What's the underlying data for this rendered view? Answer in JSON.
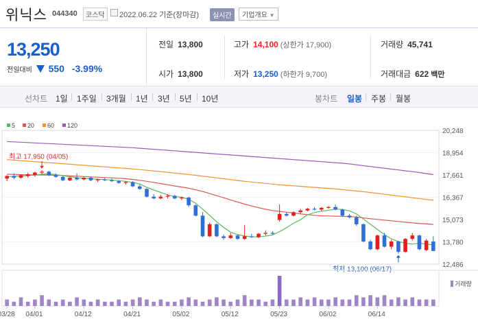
{
  "header": {
    "name": "위닉스",
    "code": "044340",
    "market": "코스닥",
    "date": "2022.06.22 기준(장마감)",
    "realtime_label": "실시간",
    "company_button": "기업개요"
  },
  "quote": {
    "price": "13,250",
    "change_label": "전일대비",
    "change_value": "550",
    "change_percent": "-3.99%",
    "prev_close_label": "전일",
    "prev_close": "13,800",
    "open_label": "시가",
    "open": "13,800",
    "high_label": "고가",
    "high": "14,100",
    "upper_limit": "(상한가 17,900)",
    "low_label": "저가",
    "low": "13,250",
    "lower_limit": "(하한가 9,700)",
    "volume_label": "거래량",
    "volume": "45,741",
    "amount_label": "거래대금",
    "amount": "622",
    "amount_unit": "백만"
  },
  "period_bar": {
    "line_chart_label": "선차트",
    "line_periods": [
      "1일",
      "1주일",
      "3개월",
      "1년",
      "3년",
      "5년",
      "10년"
    ],
    "candle_chart_label": "봉차트",
    "candle_periods": [
      "일봉",
      "주봉",
      "월봉"
    ],
    "active_candle": "일봉"
  },
  "colors": {
    "up": "#e02020",
    "down": "#2f6fd6",
    "ma5": "#5cb85c",
    "ma20": "#e05555",
    "ma60": "#f0932b",
    "ma120": "#9b59b6",
    "volume": "#9e86c9",
    "volume_spike": "#8a6bc0"
  },
  "chart_data": {
    "type": "candlestick",
    "legend": [
      {
        "name": "5",
        "color": "#5cb85c"
      },
      {
        "name": "20",
        "color": "#e05555"
      },
      {
        "name": "60",
        "color": "#f0932b"
      },
      {
        "name": "120",
        "color": "#9b59b6"
      }
    ],
    "y_ticks": [
      20248,
      18954,
      17661,
      16367,
      15073,
      13780,
      12486
    ],
    "y_tick_labels": [
      "20,248",
      "18,954",
      "17,661",
      "16,367",
      "15,073",
      "13,780",
      "12,486"
    ],
    "ylim": [
      12486,
      20248
    ],
    "x_tick_labels": [
      "03/28",
      "04/01",
      "04/12",
      "04/21",
      "05/02",
      "05/12",
      "05/23",
      "06/02",
      "06/14"
    ],
    "x_tick_index": [
      0,
      4,
      11,
      18,
      25,
      32,
      39,
      46,
      53
    ],
    "volume_label": "거래량",
    "annotations": {
      "high": {
        "text": "최고 17,950 (04/05)",
        "index": 5,
        "price": 17950
      },
      "low": {
        "text": "최저 13,100 (06/17)",
        "index": 56,
        "price": 13100
      }
    },
    "candles": [
      {
        "o": 17450,
        "h": 17650,
        "l": 17300,
        "c": 17600
      },
      {
        "o": 17600,
        "h": 17750,
        "l": 17400,
        "c": 17500
      },
      {
        "o": 17500,
        "h": 17700,
        "l": 17450,
        "c": 17650
      },
      {
        "o": 17600,
        "h": 17800,
        "l": 17500,
        "c": 17700
      },
      {
        "o": 17650,
        "h": 17850,
        "l": 17550,
        "c": 17800
      },
      {
        "o": 17800,
        "h": 17950,
        "l": 17700,
        "c": 17850
      },
      {
        "o": 17850,
        "h": 17900,
        "l": 17600,
        "c": 17650
      },
      {
        "o": 17650,
        "h": 17750,
        "l": 17500,
        "c": 17550
      },
      {
        "o": 17550,
        "h": 17600,
        "l": 17300,
        "c": 17350
      },
      {
        "o": 17350,
        "h": 17550,
        "l": 17300,
        "c": 17500
      },
      {
        "o": 17500,
        "h": 17750,
        "l": 17350,
        "c": 17400
      },
      {
        "o": 17400,
        "h": 17550,
        "l": 17350,
        "c": 17500
      },
      {
        "o": 17500,
        "h": 17550,
        "l": 17300,
        "c": 17350
      },
      {
        "o": 17350,
        "h": 17450,
        "l": 17250,
        "c": 17400
      },
      {
        "o": 17400,
        "h": 17500,
        "l": 17300,
        "c": 17350
      },
      {
        "o": 17350,
        "h": 17450,
        "l": 17250,
        "c": 17300
      },
      {
        "o": 17300,
        "h": 17350,
        "l": 17150,
        "c": 17200
      },
      {
        "o": 17200,
        "h": 17300,
        "l": 17100,
        "c": 17250
      },
      {
        "o": 17250,
        "h": 17300,
        "l": 16950,
        "c": 17000
      },
      {
        "o": 17000,
        "h": 17100,
        "l": 16800,
        "c": 16850
      },
      {
        "o": 16850,
        "h": 16900,
        "l": 16350,
        "c": 16400
      },
      {
        "o": 16400,
        "h": 16550,
        "l": 16250,
        "c": 16300
      },
      {
        "o": 16300,
        "h": 16500,
        "l": 16250,
        "c": 16400
      },
      {
        "o": 16400,
        "h": 16550,
        "l": 16300,
        "c": 16450
      },
      {
        "o": 16450,
        "h": 16500,
        "l": 16250,
        "c": 16300
      },
      {
        "o": 16300,
        "h": 16400,
        "l": 16200,
        "c": 16350
      },
      {
        "o": 16350,
        "h": 16400,
        "l": 15800,
        "c": 15900
      },
      {
        "o": 15900,
        "h": 15950,
        "l": 15250,
        "c": 15300
      },
      {
        "o": 15300,
        "h": 15500,
        "l": 14050,
        "c": 14100
      },
      {
        "o": 14100,
        "h": 14900,
        "l": 14050,
        "c": 14800
      },
      {
        "o": 14800,
        "h": 14850,
        "l": 14050,
        "c": 14100
      },
      {
        "o": 14100,
        "h": 14200,
        "l": 13900,
        "c": 14000
      },
      {
        "o": 14000,
        "h": 14300,
        "l": 13950,
        "c": 14150
      },
      {
        "o": 14150,
        "h": 14200,
        "l": 13900,
        "c": 13950
      },
      {
        "o": 13950,
        "h": 14750,
        "l": 13900,
        "c": 14100
      },
      {
        "o": 14100,
        "h": 14250,
        "l": 14000,
        "c": 14050
      },
      {
        "o": 14050,
        "h": 14300,
        "l": 14000,
        "c": 14250
      },
      {
        "o": 14250,
        "h": 14450,
        "l": 14150,
        "c": 14300
      },
      {
        "o": 14300,
        "h": 14400,
        "l": 14200,
        "c": 14250
      },
      {
        "o": 15050,
        "h": 15950,
        "l": 14950,
        "c": 15400
      },
      {
        "o": 15400,
        "h": 15500,
        "l": 15250,
        "c": 15300
      },
      {
        "o": 15300,
        "h": 15550,
        "l": 15250,
        "c": 15500
      },
      {
        "o": 15500,
        "h": 15700,
        "l": 15400,
        "c": 15600
      },
      {
        "o": 15600,
        "h": 15750,
        "l": 15550,
        "c": 15700
      },
      {
        "o": 15700,
        "h": 15800,
        "l": 15600,
        "c": 15650
      },
      {
        "o": 15650,
        "h": 15800,
        "l": 15550,
        "c": 15750
      },
      {
        "o": 15750,
        "h": 15850,
        "l": 15700,
        "c": 15800
      },
      {
        "o": 15800,
        "h": 15950,
        "l": 15600,
        "c": 15650
      },
      {
        "o": 15650,
        "h": 15700,
        "l": 15250,
        "c": 15300
      },
      {
        "o": 15300,
        "h": 15400,
        "l": 15150,
        "c": 15200
      },
      {
        "o": 15200,
        "h": 15300,
        "l": 14700,
        "c": 14800
      },
      {
        "o": 14800,
        "h": 14850,
        "l": 13750,
        "c": 13800
      },
      {
        "o": 13800,
        "h": 13900,
        "l": 13300,
        "c": 13350
      },
      {
        "o": 13350,
        "h": 14200,
        "l": 13300,
        "c": 14150
      },
      {
        "o": 14150,
        "h": 14300,
        "l": 13450,
        "c": 13500
      },
      {
        "o": 13500,
        "h": 13900,
        "l": 13350,
        "c": 13800
      },
      {
        "o": 13800,
        "h": 13850,
        "l": 13100,
        "c": 13200
      },
      {
        "o": 13200,
        "h": 14000,
        "l": 13150,
        "c": 13950
      },
      {
        "o": 13950,
        "h": 14300,
        "l": 13850,
        "c": 14150
      },
      {
        "o": 14150,
        "h": 14200,
        "l": 13300,
        "c": 13350
      },
      {
        "o": 13300,
        "h": 13950,
        "l": 13250,
        "c": 13850
      },
      {
        "o": 13800,
        "h": 14100,
        "l": 13250,
        "c": 13250
      }
    ],
    "ma5": [
      17550,
      17580,
      17600,
      17620,
      17660,
      17700,
      17720,
      17680,
      17620,
      17560,
      17500,
      17460,
      17440,
      17410,
      17390,
      17370,
      17330,
      17290,
      17230,
      17130,
      16950,
      16790,
      16650,
      16500,
      16400,
      16370,
      16250,
      16020,
      15680,
      15320,
      14940,
      14620,
      14340,
      14200,
      14120,
      14070,
      14070,
      14110,
      14180,
      14370,
      14600,
      14860,
      15060,
      15350,
      15480,
      15560,
      15620,
      15680,
      15660,
      15580,
      15400,
      15100,
      14800,
      14500,
      14200,
      13950,
      13800,
      13700,
      13650,
      13700,
      13650,
      13600
    ],
    "ma20": [
      17700,
      17690,
      17680,
      17670,
      17660,
      17660,
      17650,
      17640,
      17630,
      17610,
      17590,
      17570,
      17550,
      17530,
      17510,
      17490,
      17470,
      17440,
      17400,
      17350,
      17290,
      17230,
      17160,
      17090,
      17020,
      16960,
      16890,
      16800,
      16700,
      16580,
      16460,
      16340,
      16210,
      16090,
      15970,
      15860,
      15760,
      15670,
      15600,
      15550,
      15500,
      15450,
      15400,
      15360,
      15320,
      15290,
      15280,
      15270,
      15260,
      15250,
      15220,
      15170,
      15120,
      15080,
      15040,
      15000,
      14960,
      14920,
      14880,
      14850,
      14820,
      14790
    ],
    "ma60": [
      18550,
      18520,
      18490,
      18460,
      18430,
      18400,
      18370,
      18340,
      18310,
      18280,
      18250,
      18220,
      18190,
      18160,
      18130,
      18100,
      18070,
      18040,
      18010,
      17970,
      17930,
      17890,
      17850,
      17810,
      17770,
      17730,
      17690,
      17640,
      17590,
      17540,
      17490,
      17440,
      17390,
      17340,
      17290,
      17250,
      17210,
      17170,
      17130,
      17090,
      17060,
      17030,
      17000,
      16970,
      16940,
      16910,
      16880,
      16850,
      16810,
      16770,
      16730,
      16690,
      16640,
      16590,
      16540,
      16490,
      16440,
      16390,
      16340,
      16290,
      16240,
      16190
    ],
    "ma120": [
      19600,
      19580,
      19560,
      19540,
      19520,
      19500,
      19480,
      19460,
      19440,
      19420,
      19400,
      19380,
      19360,
      19340,
      19320,
      19300,
      19280,
      19260,
      19240,
      19210,
      19180,
      19150,
      19120,
      19090,
      19060,
      19030,
      19000,
      18970,
      18940,
      18910,
      18880,
      18850,
      18820,
      18790,
      18760,
      18730,
      18700,
      18670,
      18640,
      18610,
      18580,
      18550,
      18520,
      18490,
      18460,
      18430,
      18400,
      18370,
      18340,
      18300,
      18250,
      18200,
      18150,
      18100,
      18050,
      18000,
      17950,
      17900,
      17850,
      17800,
      17740,
      17680
    ],
    "volumes": [
      3,
      2,
      4,
      2,
      3,
      5,
      3,
      2,
      3,
      2,
      4,
      3,
      2,
      3,
      2,
      2,
      3,
      2,
      3,
      4,
      3,
      2,
      3,
      2,
      2,
      3,
      4,
      3,
      2,
      3,
      4,
      3,
      2,
      3,
      5,
      3,
      3,
      2,
      3,
      14,
      3,
      3,
      4,
      3,
      4,
      3,
      3,
      4,
      3,
      3,
      5,
      4,
      5,
      4,
      5,
      3,
      4,
      3,
      4,
      3,
      3,
      3
    ]
  }
}
